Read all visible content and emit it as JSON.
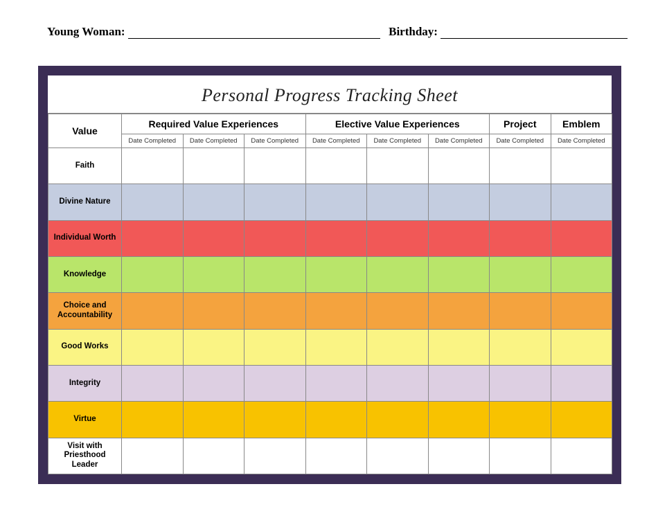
{
  "header": {
    "young_woman_label": "Young Woman:",
    "birthday_label": "Birthday:"
  },
  "sheet": {
    "title": "Personal Progress Tracking Sheet",
    "border_color": "#3b2d55",
    "columns": {
      "value_header": "Value",
      "groups": [
        {
          "label": "Required Value Experiences",
          "span": 3
        },
        {
          "label": "Elective Value Experiences",
          "span": 3
        },
        {
          "label": "Project",
          "span": 1
        },
        {
          "label": "Emblem",
          "span": 1
        }
      ],
      "subheader": "Date Completed",
      "date_col_count": 8
    },
    "rows": [
      {
        "label": "Faith",
        "color": "#ffffff"
      },
      {
        "label": "Divine Nature",
        "color": "#c4cde0"
      },
      {
        "label": "Individual Worth",
        "color": "#f15857"
      },
      {
        "label": "Knowledge",
        "color": "#b9e56a"
      },
      {
        "label": "Choice and Accountability",
        "color": "#f4a33e"
      },
      {
        "label": "Good Works",
        "color": "#faf484"
      },
      {
        "label": "Integrity",
        "color": "#ddcfe2"
      },
      {
        "label": "Virtue",
        "color": "#f8c200"
      },
      {
        "label": "Visit with Priesthood Leader",
        "color": "#ffffff"
      }
    ]
  }
}
